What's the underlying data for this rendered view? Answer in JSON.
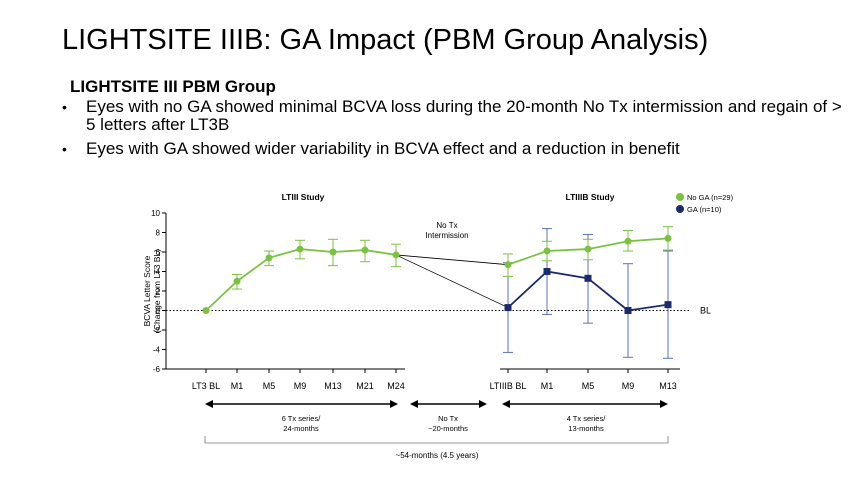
{
  "slide": {
    "title": "LIGHTSITE IIIB: GA Impact (PBM Group Analysis)",
    "subtitle": "LIGHTSITE III PBM Group",
    "bullets": [
      "Eyes with no GA showed minimal BCVA loss during the 20-month No Tx intermission and regain of > 5 letters after LT3B",
      "Eyes with GA showed wider variability in BCVA effect and a reduction in benefit"
    ]
  },
  "chart_data": {
    "type": "line",
    "ylabel": "BCVA Letter Score (Change from LT3 BL)",
    "ylim": [
      -6,
      10
    ],
    "yticks": [
      10,
      8,
      6,
      4,
      2,
      0,
      -2,
      -4,
      -6
    ],
    "baseline_label": "BL",
    "panels": [
      {
        "title": "LTIII Study",
        "categories": [
          "LT3 BL",
          "M1",
          "M5",
          "M9",
          "M13",
          "M21",
          "M24"
        ],
        "series": [
          {
            "name": "No GA (n=29)",
            "values": [
              0,
              3.0,
              5.4,
              6.3,
              6.0,
              6.2,
              5.7
            ],
            "err_low": [
              0,
              2.2,
              4.6,
              5.3,
              4.6,
              5.0,
              4.5
            ],
            "err_high": [
              0,
              3.7,
              6.1,
              7.2,
              7.3,
              7.2,
              6.8
            ]
          }
        ]
      },
      {
        "title": "LTIIIB Study",
        "categories": [
          "LTIIIB BL",
          "M1",
          "M5",
          "M9",
          "M13"
        ],
        "series": [
          {
            "name": "No GA (n=29)",
            "values": [
              4.7,
              6.1,
              6.3,
              7.1,
              7.4
            ],
            "err_low": [
              3.5,
              5.1,
              5.2,
              6.1,
              6.2
            ],
            "err_high": [
              5.8,
              7.1,
              7.3,
              8.2,
              8.6
            ]
          },
          {
            "name": "GA (n=10)",
            "values": [
              0.3,
              4.0,
              3.3,
              0.0,
              0.6
            ],
            "err_low": [
              -4.3,
              -0.4,
              -1.3,
              -4.8,
              -4.9
            ],
            "err_high": [
              4.9,
              8.4,
              7.8,
              4.8,
              6.1
            ]
          }
        ]
      }
    ],
    "legend": [
      {
        "label": "No GA (n=29)",
        "color": "#7cc242"
      },
      {
        "label": "GA (n=10)",
        "color": "#1b2b6b"
      }
    ],
    "intermission_label": [
      "No Tx",
      "Intermission"
    ],
    "annotations": {
      "phase1": [
        "6 Tx series/",
        "24-months"
      ],
      "gap": [
        "No Tx",
        "~20-months"
      ],
      "phase2": [
        "4 Tx series/",
        "13-months"
      ],
      "total": "~54-months (4.5 years)"
    },
    "colors": {
      "green": "#7cc242",
      "navy": "#1b2b6b",
      "errbar_navy": "#5a73b8"
    }
  }
}
